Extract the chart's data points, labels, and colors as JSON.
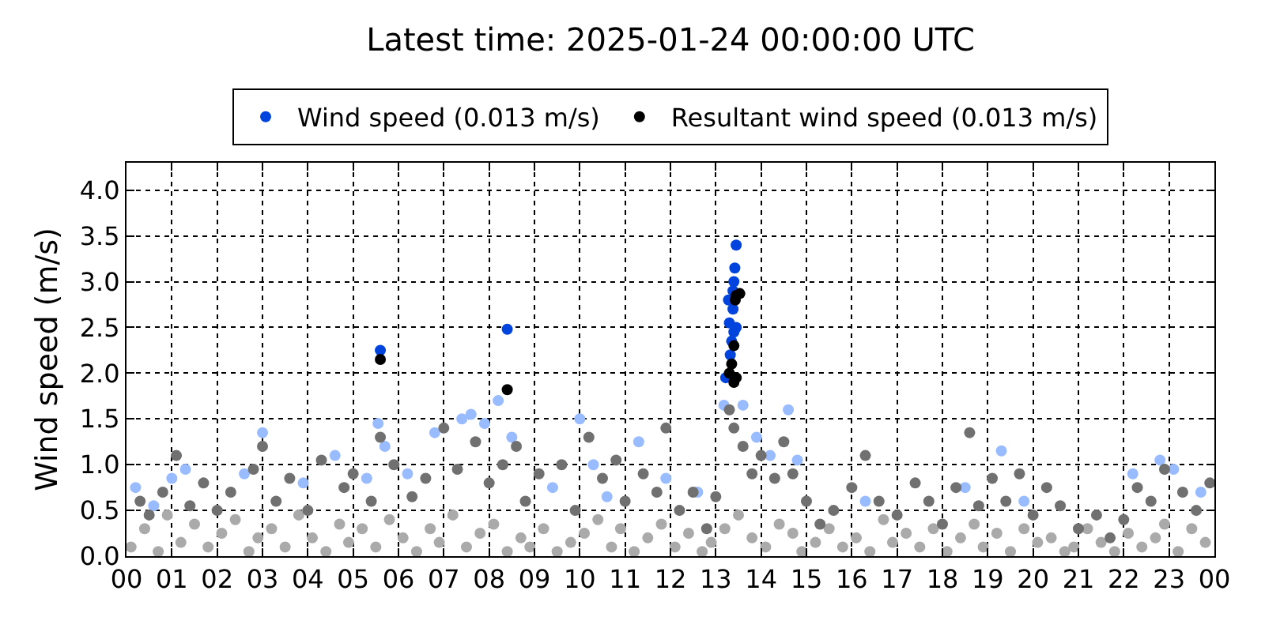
{
  "chart_data": {
    "type": "scatter",
    "title": "Latest time: 2025-01-24 00:00:00 UTC",
    "ylabel": "Wind speed (m/s)",
    "xlim": [
      0,
      24
    ],
    "xticks": [
      {
        "value": 0,
        "label": "00"
      },
      {
        "value": 1,
        "label": "01"
      },
      {
        "value": 2,
        "label": "02"
      },
      {
        "value": 3,
        "label": "03"
      },
      {
        "value": 4,
        "label": "04"
      },
      {
        "value": 5,
        "label": "05"
      },
      {
        "value": 6,
        "label": "06"
      },
      {
        "value": 7,
        "label": "07"
      },
      {
        "value": 8,
        "label": "08"
      },
      {
        "value": 9,
        "label": "09"
      },
      {
        "value": 10,
        "label": "10"
      },
      {
        "value": 11,
        "label": "11"
      },
      {
        "value": 12,
        "label": "12"
      },
      {
        "value": 13,
        "label": "13"
      },
      {
        "value": 14,
        "label": "14"
      },
      {
        "value": 15,
        "label": "15"
      },
      {
        "value": 16,
        "label": "16"
      },
      {
        "value": 17,
        "label": "17"
      },
      {
        "value": 18,
        "label": "18"
      },
      {
        "value": 19,
        "label": "19"
      },
      {
        "value": 20,
        "label": "20"
      },
      {
        "value": 21,
        "label": "21"
      },
      {
        "value": 22,
        "label": "22"
      },
      {
        "value": 23,
        "label": "23"
      },
      {
        "value": 24,
        "label": "00"
      }
    ],
    "ylim": [
      0,
      4.3
    ],
    "yticks": [
      {
        "value": 0,
        "label": "0.0"
      },
      {
        "value": 0.5,
        "label": "0.5"
      },
      {
        "value": 1,
        "label": "1.0"
      },
      {
        "value": 1.5,
        "label": "1.5"
      },
      {
        "value": 2,
        "label": "2.0"
      },
      {
        "value": 2.5,
        "label": "2.5"
      },
      {
        "value": 3,
        "label": "3.0"
      },
      {
        "value": 3.5,
        "label": "3.5"
      },
      {
        "value": 4,
        "label": "4.0"
      }
    ],
    "grid": true,
    "legend": "top",
    "marker": "circle",
    "series": [
      {
        "color": "#aaaaaa",
        "x": [
          0.1,
          0.4,
          0.7,
          0.9,
          1.2,
          1.5,
          1.8,
          2.1,
          2.4,
          2.7,
          2.9,
          3.2,
          3.5,
          3.8,
          4.1,
          4.4,
          4.7,
          4.9,
          5.2,
          5.5,
          5.8,
          6.1,
          6.4,
          6.7,
          6.9,
          7.2,
          7.5,
          7.8,
          8.1,
          8.4,
          8.7,
          8.9,
          9.2,
          9.5,
          9.8,
          10.1,
          10.4,
          10.7,
          10.9,
          11.2,
          11.5,
          11.8,
          12.1,
          12.4,
          12.7,
          12.9,
          13.2,
          13.5,
          13.8,
          14.1,
          14.4,
          14.7,
          14.9,
          15.2,
          15.5,
          15.8,
          16.1,
          16.4,
          16.7,
          16.9,
          17.2,
          17.5,
          17.8,
          18.1,
          18.4,
          18.7,
          18.9,
          19.2,
          19.5,
          19.8,
          20.1,
          20.4,
          20.7,
          20.9,
          21.2,
          21.5,
          21.8,
          22.1,
          22.4,
          22.7,
          22.9,
          23.2,
          23.5,
          23.8
        ],
        "values": [
          0.1,
          0.3,
          0.05,
          0.45,
          0.15,
          0.35,
          0.1,
          0.25,
          0.4,
          0.05,
          0.2,
          0.3,
          0.1,
          0.45,
          0.2,
          0.05,
          0.35,
          0.15,
          0.3,
          0.1,
          0.4,
          0.2,
          0.05,
          0.3,
          0.15,
          0.45,
          0.1,
          0.25,
          0.35,
          0.05,
          0.2,
          0.1,
          0.3,
          0.05,
          0.15,
          0.25,
          0.4,
          0.1,
          0.3,
          0.05,
          0.2,
          0.35,
          0.1,
          0.25,
          0.05,
          0.15,
          0.3,
          0.45,
          0.2,
          0.1,
          0.35,
          0.25,
          0.05,
          0.15,
          0.3,
          0.1,
          0.2,
          0.05,
          0.4,
          0.15,
          0.25,
          0.1,
          0.3,
          0.05,
          0.2,
          0.35,
          0.1,
          0.25,
          0.05,
          0.3,
          0.15,
          0.2,
          0.05,
          0.1,
          0.3,
          0.15,
          0.05,
          0.25,
          0.1,
          0.2,
          0.35,
          0.05,
          0.3,
          0.15
        ]
      },
      {
        "color": "#99bbff",
        "x": [
          0.2,
          0.6,
          1.0,
          1.3,
          2.6,
          3.0,
          3.9,
          4.6,
          5.3,
          5.55,
          5.7,
          6.2,
          6.8,
          7.4,
          7.6,
          7.9,
          8.2,
          8.5,
          9.4,
          10.0,
          10.3,
          10.6,
          11.3,
          11.9,
          12.6,
          13.18,
          13.6,
          13.9,
          14.2,
          14.6,
          14.8,
          16.3,
          18.5,
          19.3,
          19.8,
          22.2,
          22.8,
          23.1,
          23.7
        ],
        "values": [
          0.75,
          0.55,
          0.85,
          0.95,
          0.9,
          1.35,
          0.8,
          1.1,
          0.85,
          1.45,
          1.2,
          0.9,
          1.35,
          1.5,
          1.55,
          1.45,
          1.7,
          1.3,
          0.75,
          1.5,
          1.0,
          0.65,
          1.25,
          0.85,
          0.7,
          1.65,
          1.65,
          1.3,
          1.1,
          1.6,
          1.05,
          0.6,
          0.75,
          1.15,
          0.6,
          0.9,
          1.05,
          0.95,
          0.7
        ]
      },
      {
        "color": "#707070",
        "x": [
          0.3,
          0.5,
          0.8,
          1.1,
          1.4,
          1.7,
          2.0,
          2.3,
          2.8,
          3.0,
          3.3,
          3.6,
          4.0,
          4.3,
          4.8,
          5.0,
          5.4,
          5.6,
          5.9,
          6.3,
          6.6,
          7.0,
          7.3,
          7.7,
          8.0,
          8.3,
          8.6,
          8.8,
          9.1,
          9.6,
          9.9,
          10.2,
          10.5,
          10.8,
          11.0,
          11.4,
          11.7,
          11.9,
          12.2,
          12.5,
          12.8,
          13.0,
          13.3,
          13.4,
          13.6,
          13.8,
          14.0,
          14.3,
          14.5,
          14.7,
          15.0,
          15.3,
          15.6,
          16.0,
          16.3,
          16.6,
          17.0,
          17.4,
          17.7,
          18.0,
          18.3,
          18.6,
          18.8,
          19.1,
          19.4,
          19.7,
          20.0,
          20.3,
          20.6,
          21.0,
          21.4,
          21.7,
          22.0,
          22.3,
          22.6,
          22.9,
          23.3,
          23.6,
          23.9
        ],
        "values": [
          0.6,
          0.45,
          0.7,
          1.1,
          0.55,
          0.8,
          0.5,
          0.7,
          0.95,
          1.2,
          0.6,
          0.85,
          0.5,
          1.05,
          0.75,
          0.9,
          0.6,
          1.3,
          1.0,
          0.65,
          0.85,
          1.4,
          0.95,
          1.25,
          0.8,
          1.0,
          1.2,
          0.6,
          0.9,
          1.0,
          0.5,
          1.3,
          0.85,
          1.05,
          0.6,
          0.9,
          0.7,
          1.4,
          0.5,
          0.7,
          0.3,
          0.65,
          1.6,
          1.4,
          1.2,
          0.9,
          1.1,
          0.85,
          1.25,
          0.9,
          0.6,
          0.35,
          0.5,
          0.75,
          1.1,
          0.6,
          0.45,
          0.8,
          0.6,
          0.35,
          0.75,
          1.35,
          0.55,
          0.85,
          0.6,
          0.9,
          0.45,
          0.75,
          0.55,
          0.3,
          0.45,
          0.2,
          0.4,
          0.75,
          0.6,
          0.95,
          0.7,
          0.5,
          0.8
        ]
      },
      {
        "name": "Wind speed (0.013 m/s)",
        "color": "#0044dd",
        "x": [
          13.45,
          13.42,
          13.4,
          13.38,
          13.28,
          13.38,
          13.3,
          13.45,
          13.4,
          13.35,
          13.32,
          13.22,
          5.6,
          8.4
        ],
        "values": [
          3.4,
          3.15,
          3.0,
          2.9,
          2.8,
          2.7,
          2.55,
          2.5,
          2.45,
          2.35,
          2.2,
          1.95,
          2.25,
          2.48
        ]
      },
      {
        "name": "Resultant wind speed (0.013 m/s)",
        "color": "#000000",
        "x": [
          13.53,
          13.45,
          13.43,
          13.4,
          13.35,
          13.3,
          13.4,
          13.45,
          5.6,
          8.4
        ],
        "values": [
          2.87,
          2.85,
          2.8,
          2.3,
          2.1,
          2.0,
          1.9,
          1.95,
          2.15,
          1.82
        ]
      }
    ]
  }
}
